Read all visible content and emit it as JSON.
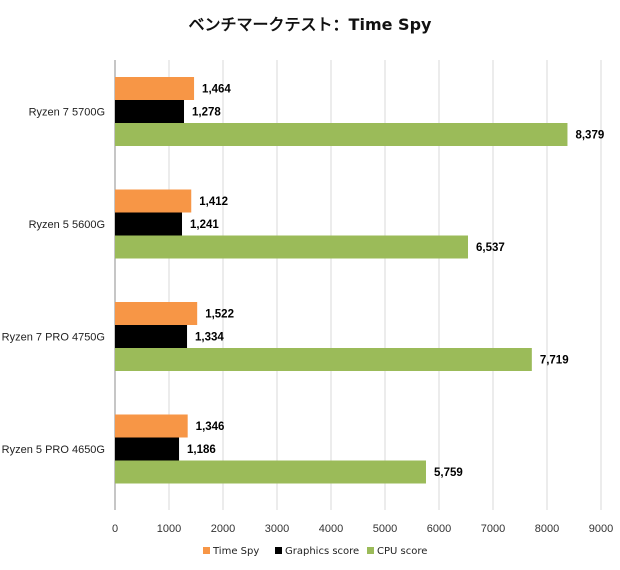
{
  "chart_data": {
    "type": "bar",
    "orientation": "horizontal",
    "title": "ベンチマークテスト：Time Spy",
    "categories": [
      "Ryzen 7 5700G",
      "Ryzen 5 5600G",
      "Ryzen 7 PRO 4750G",
      "Ryzen 5 PRO 4650G"
    ],
    "series": [
      {
        "name": "Time Spy",
        "color": "#f79646",
        "values": [
          1464,
          1412,
          1522,
          1346
        ],
        "labels": [
          "1,464",
          "1,412",
          "1,522",
          "1,346"
        ]
      },
      {
        "name": "Graphics score",
        "color": "#000000",
        "values": [
          1278,
          1241,
          1334,
          1186
        ],
        "labels": [
          "1,278",
          "1,241",
          "1,334",
          "1,186"
        ]
      },
      {
        "name": "CPU score",
        "color": "#9bbb59",
        "values": [
          8379,
          6537,
          7719,
          5759
        ],
        "labels": [
          "8,379",
          "6,537",
          "7,719",
          "5,759"
        ]
      }
    ],
    "xlim": [
      0,
      9000
    ],
    "xticks": [
      "0",
      "1000",
      "2000",
      "3000",
      "4000",
      "5000",
      "6000",
      "7000",
      "8000",
      "9000"
    ],
    "xlabel": "",
    "ylabel": "",
    "grid": "vertical",
    "legend": "bottom"
  }
}
